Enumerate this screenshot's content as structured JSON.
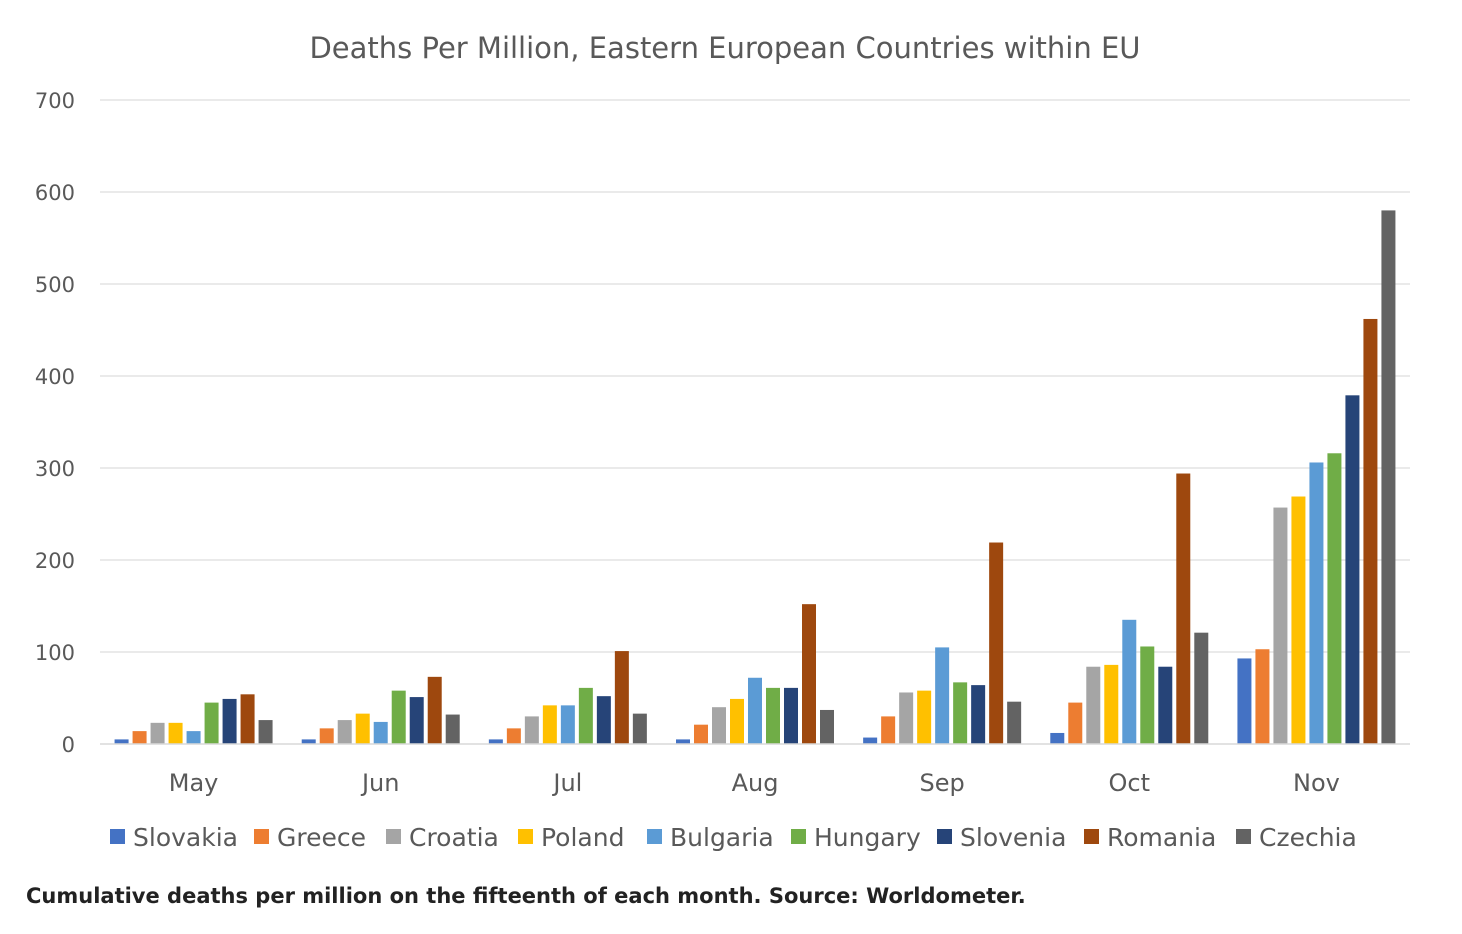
{
  "caption": "Cumulative deaths per million on the fifteenth of each month. Source: Worldometer.",
  "chart_data": {
    "type": "bar",
    "title": "Deaths Per Million, Eastern European Countries within EU",
    "xlabel": "",
    "ylabel": "",
    "ylim": [
      0,
      700
    ],
    "yticks": [
      0,
      100,
      200,
      300,
      400,
      500,
      600,
      700
    ],
    "grid": true,
    "legend_position": "bottom",
    "categories": [
      "May",
      "Jun",
      "Jul",
      "Aug",
      "Sep",
      "Oct",
      "Nov"
    ],
    "series": [
      {
        "name": "Slovakia",
        "color": "#4472C4",
        "values": [
          5,
          5,
          5,
          5,
          7,
          12,
          93
        ]
      },
      {
        "name": "Greece",
        "color": "#ED7D31",
        "values": [
          14,
          17,
          17,
          21,
          30,
          45,
          103
        ]
      },
      {
        "name": "Croatia",
        "color": "#A5A5A5",
        "values": [
          23,
          26,
          30,
          40,
          56,
          84,
          257
        ]
      },
      {
        "name": "Poland",
        "color": "#FFC000",
        "values": [
          23,
          33,
          42,
          49,
          58,
          86,
          269
        ]
      },
      {
        "name": "Bulgaria",
        "color": "#5B9BD5",
        "values": [
          14,
          24,
          42,
          72,
          105,
          135,
          306
        ]
      },
      {
        "name": "Hungary",
        "color": "#70AD47",
        "values": [
          45,
          58,
          61,
          61,
          67,
          106,
          316
        ]
      },
      {
        "name": "Slovenia",
        "color": "#264478",
        "values": [
          49,
          51,
          52,
          61,
          64,
          84,
          379
        ]
      },
      {
        "name": "Romania",
        "color": "#9E480E",
        "values": [
          54,
          73,
          101,
          152,
          219,
          294,
          462
        ]
      },
      {
        "name": "Czechia",
        "color": "#636363",
        "values": [
          26,
          32,
          33,
          37,
          46,
          121,
          580
        ]
      }
    ]
  }
}
